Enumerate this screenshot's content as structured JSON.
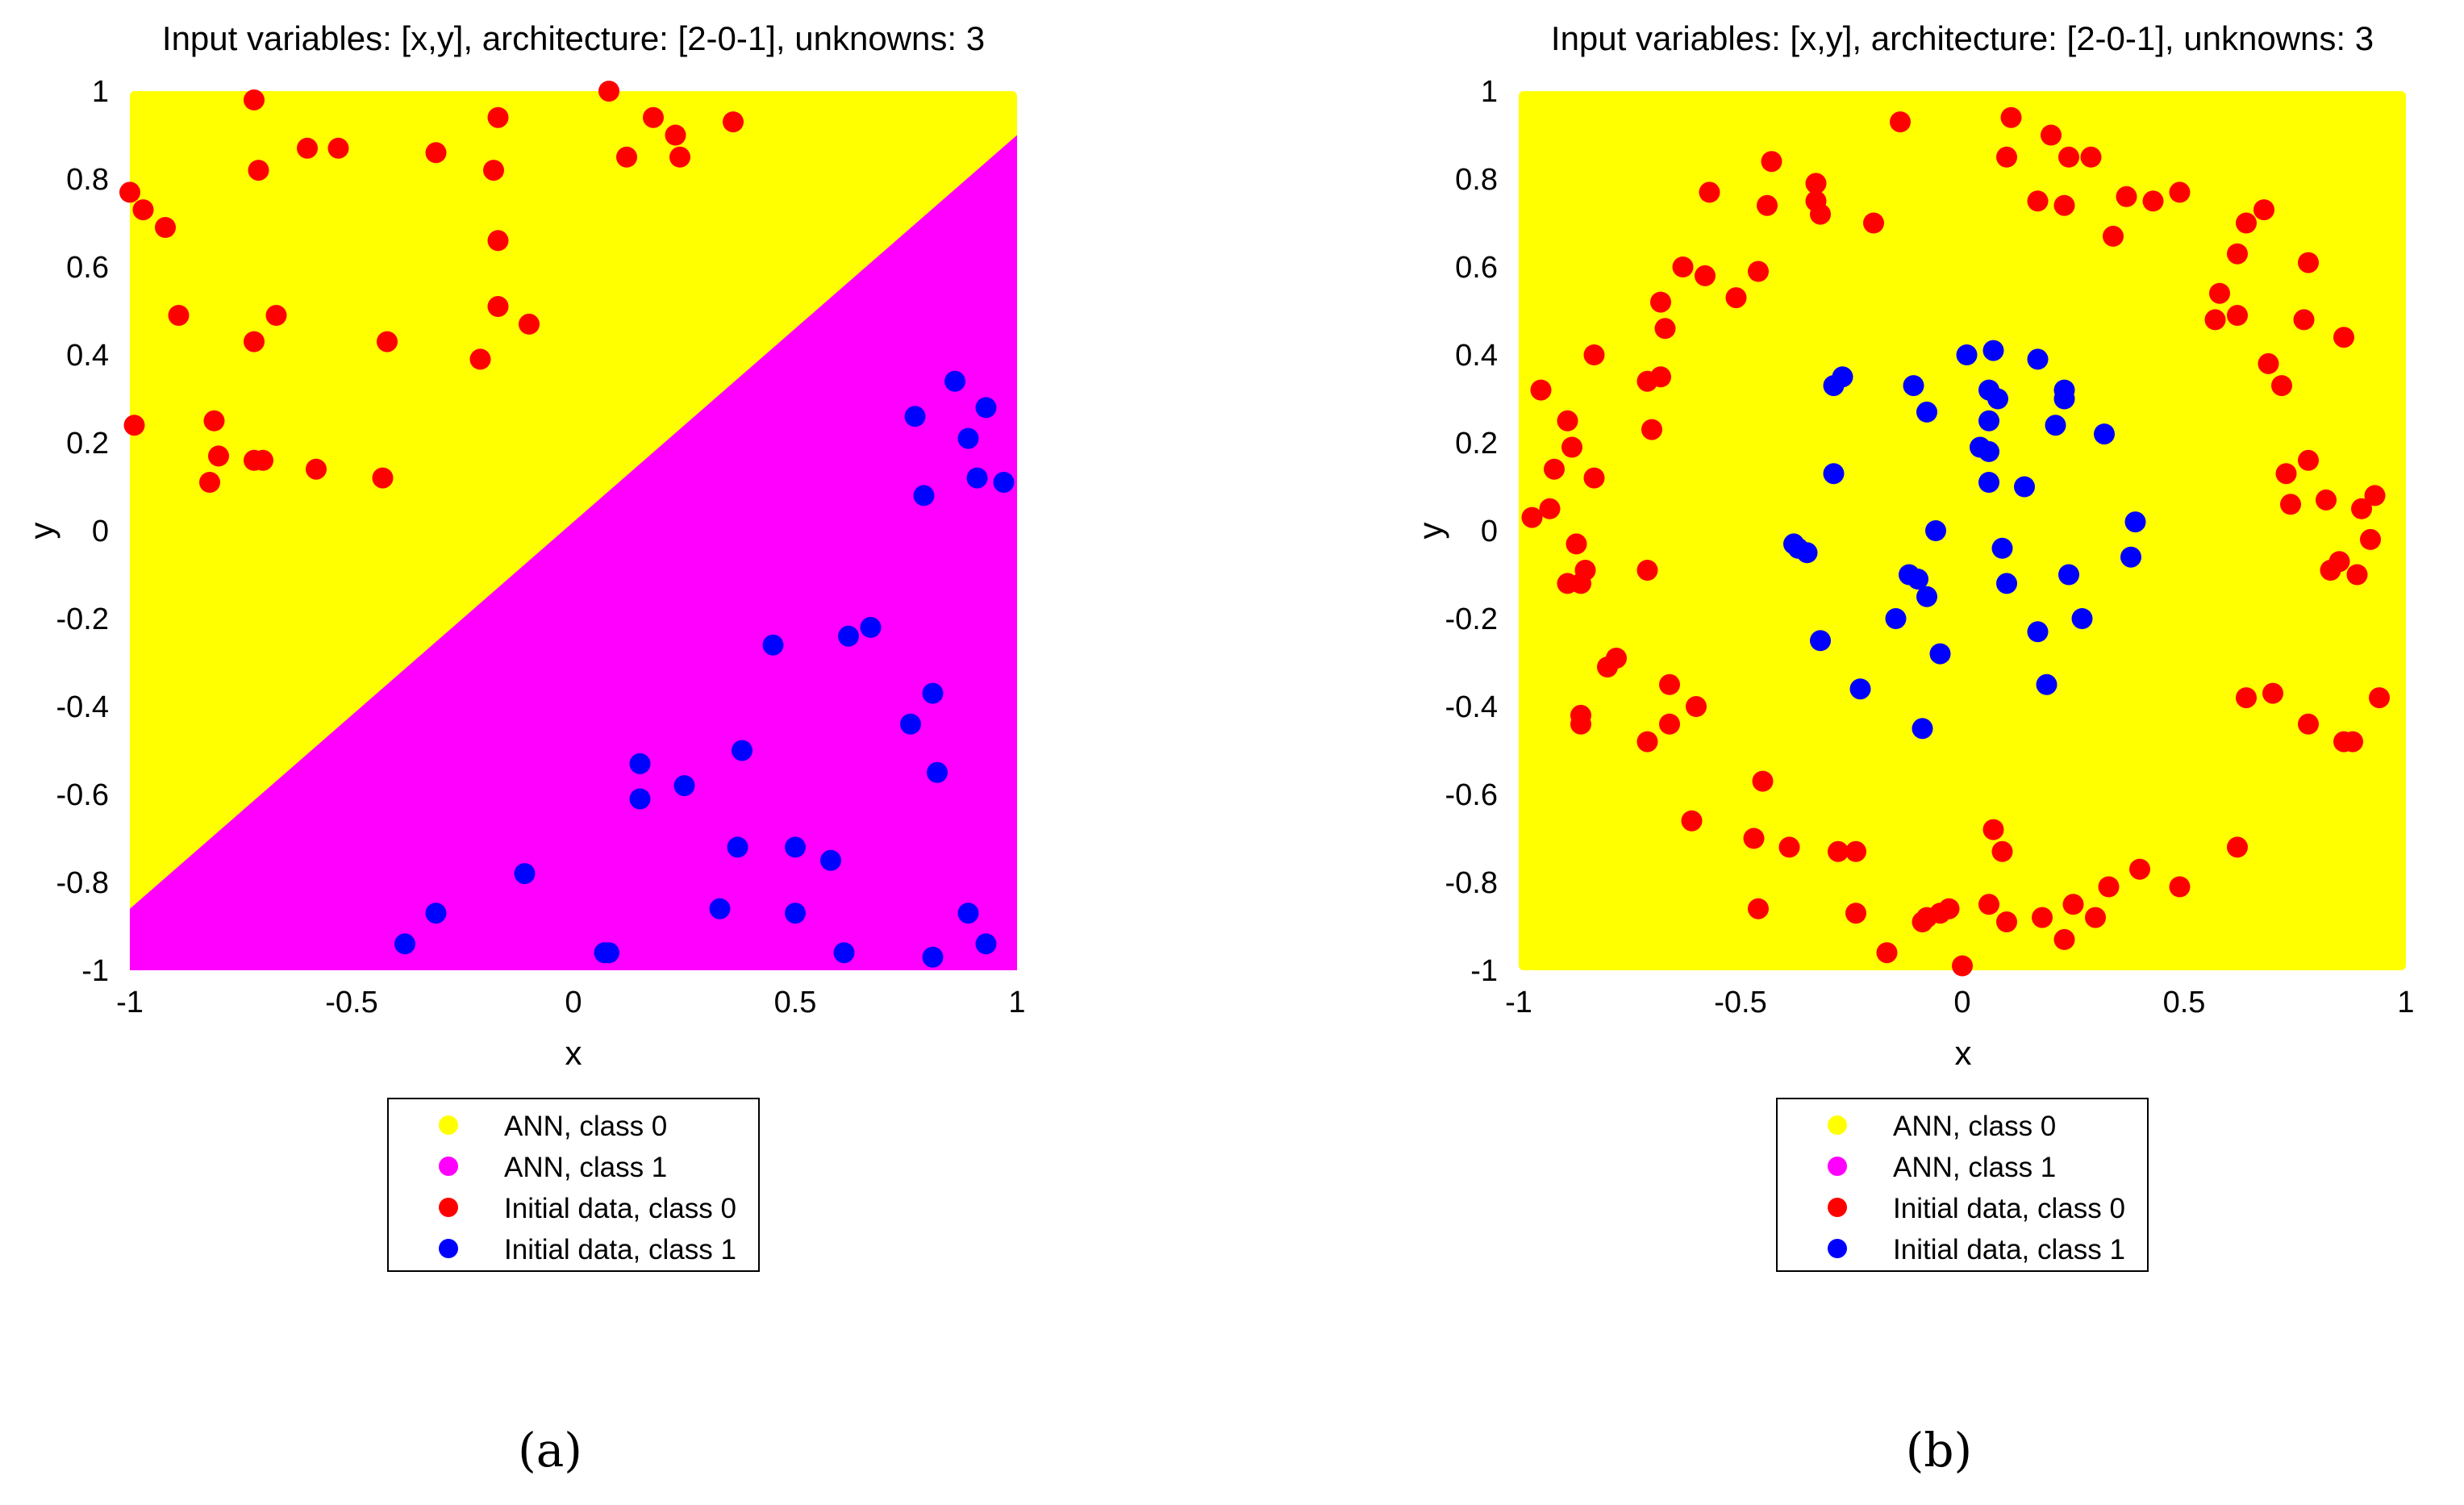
{
  "colors": {
    "ann_class0": "#ffff00",
    "ann_class1": "#ff00ff",
    "data_class0": "#ff0000",
    "data_class1": "#0000ff",
    "frame": "#000000",
    "background": "#ffffff"
  },
  "legend": {
    "entries": [
      {
        "label": "ANN, class 0",
        "color": "#ffff00"
      },
      {
        "label": "ANN, class 1",
        "color": "#ff00ff"
      },
      {
        "label": "Initial data, class 0",
        "color": "#ff0000"
      },
      {
        "label": "Initial data, class 1",
        "color": "#0000ff"
      }
    ]
  },
  "chart_data": [
    {
      "type": "scatter",
      "panel_label": "(a)",
      "title": "Input variables: [x,y], architecture: [2-0-1], unknowns: 3",
      "xlabel": "x",
      "ylabel": "y",
      "xlim": [
        -1,
        1
      ],
      "ylim": [
        -1,
        1
      ],
      "xticks": [
        -1,
        -0.5,
        0,
        0.5,
        1
      ],
      "xtick_labels": [
        "-1",
        "-0.5",
        "0",
        "0.5",
        "1"
      ],
      "yticks": [
        1,
        0.8,
        0.6,
        0.4,
        0.2,
        0,
        -0.2,
        -0.4,
        -0.6,
        -0.8,
        -1
      ],
      "ytick_labels": [
        "1",
        "0.8",
        "0.6",
        "0.4",
        "0.2",
        "0",
        "-0.2",
        "-0.4",
        "-0.6",
        "-0.8",
        "-1"
      ],
      "grid": false,
      "legend_position": "below",
      "decision_region": {
        "kind": "linear",
        "class1_side": "below",
        "boundary": [
          [
            -1,
            -0.86
          ],
          [
            1,
            0.9
          ]
        ]
      },
      "series": [
        {
          "name": "Initial data, class 0",
          "points": [
            [
              -0.72,
              0.98
            ],
            [
              0.08,
              1.0
            ],
            [
              0.18,
              0.94
            ],
            [
              0.23,
              0.9
            ],
            [
              0.36,
              0.93
            ],
            [
              -0.17,
              0.94
            ],
            [
              -1.0,
              0.77
            ],
            [
              -0.97,
              0.73
            ],
            [
              -0.92,
              0.69
            ],
            [
              -0.71,
              0.82
            ],
            [
              -0.6,
              0.87
            ],
            [
              -0.53,
              0.87
            ],
            [
              -0.31,
              0.86
            ],
            [
              -0.18,
              0.82
            ],
            [
              0.12,
              0.85
            ],
            [
              0.24,
              0.85
            ],
            [
              -0.17,
              0.66
            ],
            [
              -0.89,
              0.49
            ],
            [
              -0.67,
              0.49
            ],
            [
              -0.72,
              0.43
            ],
            [
              -0.42,
              0.43
            ],
            [
              -0.17,
              0.51
            ],
            [
              -0.1,
              0.47
            ],
            [
              -0.21,
              0.39
            ],
            [
              -0.99,
              0.24
            ],
            [
              -0.81,
              0.25
            ],
            [
              -0.8,
              0.17
            ],
            [
              -0.72,
              0.16
            ],
            [
              -0.7,
              0.16
            ],
            [
              -0.58,
              0.14
            ],
            [
              -0.43,
              0.12
            ],
            [
              -0.82,
              0.11
            ]
          ]
        },
        {
          "name": "Initial data, class 1",
          "points": [
            [
              0.86,
              0.34
            ],
            [
              0.77,
              0.26
            ],
            [
              0.93,
              0.28
            ],
            [
              0.89,
              0.21
            ],
            [
              0.91,
              0.12
            ],
            [
              0.97,
              0.11
            ],
            [
              0.79,
              0.08
            ],
            [
              0.45,
              -0.26
            ],
            [
              0.62,
              -0.24
            ],
            [
              0.67,
              -0.22
            ],
            [
              0.81,
              -0.37
            ],
            [
              0.76,
              -0.44
            ],
            [
              0.38,
              -0.5
            ],
            [
              0.15,
              -0.53
            ],
            [
              0.82,
              -0.55
            ],
            [
              0.25,
              -0.58
            ],
            [
              0.15,
              -0.61
            ],
            [
              0.37,
              -0.72
            ],
            [
              0.5,
              -0.72
            ],
            [
              0.58,
              -0.75
            ],
            [
              -0.11,
              -0.78
            ],
            [
              0.33,
              -0.86
            ],
            [
              0.5,
              -0.87
            ],
            [
              0.89,
              -0.87
            ],
            [
              -0.31,
              -0.87
            ],
            [
              -0.38,
              -0.94
            ],
            [
              0.07,
              -0.96
            ],
            [
              0.08,
              -0.96
            ],
            [
              0.61,
              -0.96
            ],
            [
              0.81,
              -0.97
            ],
            [
              0.93,
              -0.94
            ]
          ]
        }
      ]
    },
    {
      "type": "scatter",
      "panel_label": "(b)",
      "title": "Input variables: [x,y], architecture: [2-0-1], unknowns: 3",
      "xlabel": "x",
      "ylabel": "y",
      "xlim": [
        -1,
        1
      ],
      "ylim": [
        -1,
        1
      ],
      "xticks": [
        -1,
        -0.5,
        0,
        0.5,
        1
      ],
      "xtick_labels": [
        "-1",
        "-0.5",
        "0",
        "0.5",
        "1"
      ],
      "yticks": [
        1,
        0.8,
        0.6,
        0.4,
        0.2,
        0,
        -0.2,
        -0.4,
        -0.6,
        -0.8,
        -1
      ],
      "ytick_labels": [
        "1",
        "0.8",
        "0.6",
        "0.4",
        "0.2",
        "0",
        "-0.2",
        "-0.4",
        "-0.6",
        "-0.8",
        "-1"
      ],
      "grid": false,
      "legend_position": "below",
      "decision_region": {
        "kind": "uniform",
        "class": "ANN, class 0"
      },
      "series": [
        {
          "name": "Initial data, class 0",
          "points": [
            [
              -0.14,
              0.93
            ],
            [
              0.11,
              0.94
            ],
            [
              0.2,
              0.9
            ],
            [
              -0.43,
              0.84
            ],
            [
              -0.57,
              0.77
            ],
            [
              -0.44,
              0.74
            ],
            [
              -0.33,
              0.79
            ],
            [
              -0.33,
              0.75
            ],
            [
              -0.32,
              0.72
            ],
            [
              -0.2,
              0.7
            ],
            [
              0.1,
              0.85
            ],
            [
              0.24,
              0.85
            ],
            [
              0.29,
              0.85
            ],
            [
              0.17,
              0.75
            ],
            [
              0.23,
              0.74
            ],
            [
              0.34,
              0.67
            ],
            [
              0.37,
              0.76
            ],
            [
              0.43,
              0.75
            ],
            [
              0.49,
              0.77
            ],
            [
              0.64,
              0.7
            ],
            [
              0.68,
              0.73
            ],
            [
              0.62,
              0.63
            ],
            [
              0.78,
              0.61
            ],
            [
              -0.63,
              0.6
            ],
            [
              -0.58,
              0.58
            ],
            [
              -0.46,
              0.59
            ],
            [
              -0.51,
              0.53
            ],
            [
              -0.68,
              0.52
            ],
            [
              -0.67,
              0.46
            ],
            [
              0.58,
              0.54
            ],
            [
              0.57,
              0.48
            ],
            [
              0.62,
              0.49
            ],
            [
              0.77,
              0.48
            ],
            [
              0.86,
              0.44
            ],
            [
              -0.83,
              0.4
            ],
            [
              -0.71,
              0.34
            ],
            [
              -0.68,
              0.35
            ],
            [
              -0.7,
              0.23
            ],
            [
              0.69,
              0.38
            ],
            [
              0.72,
              0.33
            ],
            [
              -0.95,
              0.32
            ],
            [
              -0.89,
              0.25
            ],
            [
              -0.88,
              0.19
            ],
            [
              -0.92,
              0.14
            ],
            [
              -0.83,
              0.12
            ],
            [
              0.78,
              0.16
            ],
            [
              0.73,
              0.13
            ],
            [
              0.74,
              0.06
            ],
            [
              0.82,
              0.07
            ],
            [
              0.9,
              0.05
            ],
            [
              0.93,
              0.08
            ],
            [
              -0.97,
              0.03
            ],
            [
              -0.93,
              0.05
            ],
            [
              -0.87,
              -0.03
            ],
            [
              -0.85,
              -0.09
            ],
            [
              -0.86,
              -0.12
            ],
            [
              -0.89,
              -0.12
            ],
            [
              -0.71,
              -0.09
            ],
            [
              0.85,
              -0.07
            ],
            [
              0.92,
              -0.02
            ],
            [
              0.83,
              -0.09
            ],
            [
              0.89,
              -0.1
            ],
            [
              -0.78,
              -0.29
            ],
            [
              -0.8,
              -0.31
            ],
            [
              -0.66,
              -0.35
            ],
            [
              -0.6,
              -0.4
            ],
            [
              -0.86,
              -0.42
            ],
            [
              -0.86,
              -0.44
            ],
            [
              -0.66,
              -0.44
            ],
            [
              -0.71,
              -0.48
            ],
            [
              0.64,
              -0.38
            ],
            [
              0.7,
              -0.37
            ],
            [
              0.94,
              -0.38
            ],
            [
              0.78,
              -0.44
            ],
            [
              0.86,
              -0.48
            ],
            [
              0.88,
              -0.48
            ],
            [
              -0.45,
              -0.57
            ],
            [
              -0.61,
              -0.66
            ],
            [
              -0.47,
              -0.7
            ],
            [
              -0.39,
              -0.72
            ],
            [
              -0.28,
              -0.73
            ],
            [
              -0.24,
              -0.73
            ],
            [
              0.07,
              -0.68
            ],
            [
              0.09,
              -0.73
            ],
            [
              0.62,
              -0.72
            ],
            [
              0.4,
              -0.77
            ],
            [
              0.33,
              -0.81
            ],
            [
              0.49,
              -0.81
            ],
            [
              -0.46,
              -0.86
            ],
            [
              -0.24,
              -0.87
            ],
            [
              -0.05,
              -0.87
            ],
            [
              -0.09,
              -0.89
            ],
            [
              -0.03,
              -0.86
            ],
            [
              0.06,
              -0.85
            ],
            [
              0.1,
              -0.89
            ],
            [
              0.18,
              -0.88
            ],
            [
              0.25,
              -0.85
            ],
            [
              0.3,
              -0.88
            ],
            [
              -0.17,
              -0.96
            ],
            [
              -0.08,
              -0.88
            ],
            [
              0.23,
              -0.93
            ],
            [
              0.0,
              -0.99
            ]
          ]
        },
        {
          "name": "Initial data, class 1",
          "points": [
            [
              0.01,
              0.4
            ],
            [
              0.07,
              0.41
            ],
            [
              0.17,
              0.39
            ],
            [
              -0.11,
              0.33
            ],
            [
              -0.08,
              0.27
            ],
            [
              0.06,
              0.32
            ],
            [
              0.08,
              0.3
            ],
            [
              0.23,
              0.32
            ],
            [
              0.23,
              0.3
            ],
            [
              -0.27,
              0.35
            ],
            [
              -0.29,
              0.33
            ],
            [
              0.06,
              0.25
            ],
            [
              0.21,
              0.24
            ],
            [
              0.32,
              0.22
            ],
            [
              0.04,
              0.19
            ],
            [
              0.06,
              0.18
            ],
            [
              -0.29,
              0.13
            ],
            [
              0.06,
              0.11
            ],
            [
              0.14,
              0.1
            ],
            [
              0.39,
              0.02
            ],
            [
              -0.06,
              0.0
            ],
            [
              -0.38,
              -0.03
            ],
            [
              -0.37,
              -0.04
            ],
            [
              -0.35,
              -0.05
            ],
            [
              0.09,
              -0.04
            ],
            [
              0.38,
              -0.06
            ],
            [
              -0.12,
              -0.1
            ],
            [
              -0.1,
              -0.11
            ],
            [
              0.1,
              -0.12
            ],
            [
              0.24,
              -0.1
            ],
            [
              -0.08,
              -0.15
            ],
            [
              -0.15,
              -0.2
            ],
            [
              0.27,
              -0.2
            ],
            [
              -0.32,
              -0.25
            ],
            [
              0.17,
              -0.23
            ],
            [
              -0.05,
              -0.28
            ],
            [
              -0.23,
              -0.36
            ],
            [
              0.19,
              -0.35
            ],
            [
              -0.09,
              -0.45
            ]
          ]
        }
      ]
    }
  ]
}
